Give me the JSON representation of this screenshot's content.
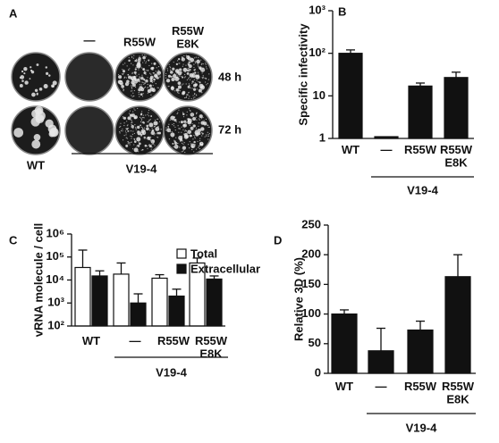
{
  "panels": {
    "A": {
      "letter": "A",
      "column_labels": [
        "—",
        "R55W",
        "R55W E8K"
      ],
      "row_labels": [
        "48 h",
        "72 h"
      ],
      "wt_label": "WT",
      "group_label": "V19-4"
    }
  },
  "chart_data": [
    {
      "type": "bar",
      "panel": "B",
      "y_label": "Specific infectivity",
      "log_scale": true,
      "categories": [
        "WT",
        "—",
        "R55W",
        "R55W E8K"
      ],
      "group_label": "V19-4",
      "values": [
        100,
        1.1,
        17,
        27
      ],
      "errors": [
        20,
        0,
        3,
        9
      ],
      "color": "#111111",
      "ylim": [
        1,
        1000
      ],
      "yticks": [
        1,
        10,
        {
          "value": 100,
          "label": "10²"
        },
        {
          "value": 1000,
          "label": "10³"
        }
      ]
    },
    {
      "type": "grouped-bar",
      "panel": "C",
      "y_label": "vRNA molecule / cell",
      "log_scale": true,
      "categories": [
        "WT",
        "—",
        "R55W",
        "R55W E8K"
      ],
      "group_label": "V19-4",
      "series": [
        {
          "name": "Total",
          "color": "#ffffff",
          "values": [
            35000,
            18000,
            12000,
            55000
          ],
          "errors": [
            165000,
            37000,
            5000,
            35000
          ]
        },
        {
          "name": "Extracellular",
          "color": "#111111",
          "values": [
            15000,
            1000,
            2000,
            11000
          ],
          "errors": [
            10000,
            1500,
            2000,
            4000
          ]
        }
      ],
      "ylim": [
        100,
        1000000
      ],
      "yticks": [
        {
          "value": 100,
          "label": "10²"
        },
        {
          "value": 1000,
          "label": "10³"
        },
        {
          "value": 10000,
          "label": "10⁴"
        },
        {
          "value": 100000,
          "label": "10⁵"
        },
        {
          "value": 1000000,
          "label": "10⁶"
        }
      ]
    },
    {
      "type": "bar",
      "panel": "D",
      "y_label": "Relative 3D (%)",
      "log_scale": false,
      "categories": [
        "WT",
        "—",
        "R55W",
        "R55W E8K"
      ],
      "group_label": "V19-4",
      "values": [
        100,
        38,
        73,
        163
      ],
      "errors": [
        7,
        38,
        15,
        37
      ],
      "color": "#111111",
      "ylim": [
        0,
        250
      ],
      "yticks": [
        0,
        50,
        100,
        150,
        200,
        250
      ]
    }
  ]
}
